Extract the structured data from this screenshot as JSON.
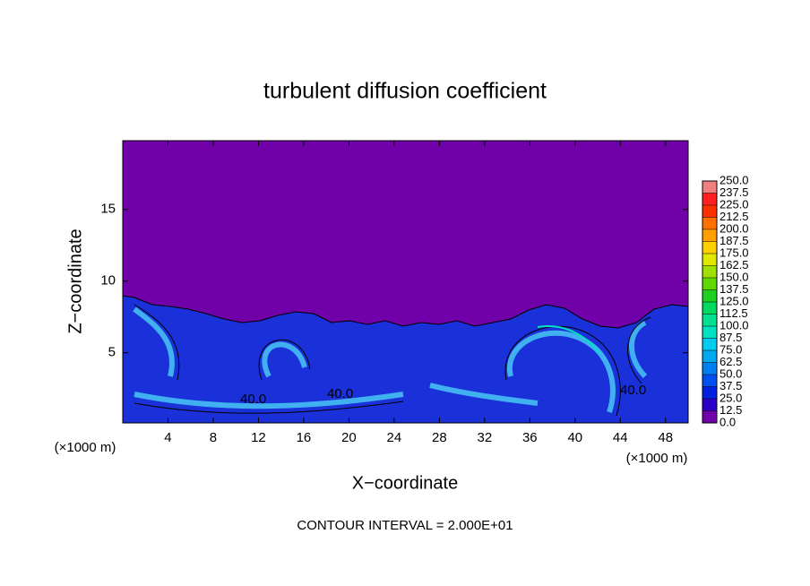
{
  "chart_data": {
    "type": "contour",
    "title": "turbulent diffusion coefficient",
    "xlabel": "X−coordinate",
    "ylabel": "Z−coordinate",
    "x_unit": "(×1000 m)",
    "y_unit": "(×1000 m)",
    "note": "CONTOUR INTERVAL = 2.000E+01",
    "xlim": [
      0,
      50
    ],
    "xticks": [
      4,
      8,
      12,
      16,
      20,
      24,
      28,
      32,
      36,
      40,
      44,
      48
    ],
    "ylim": [
      0.1,
      19.8
    ],
    "yticks": [
      5,
      10,
      15
    ],
    "contour_labels": [
      "40.0",
      "40.0",
      "40.0"
    ],
    "colorbar": {
      "levels": [
        {
          "value": 0,
          "label": "0.0"
        },
        12.5,
        {
          "value": 25,
          "label": "25.0"
        },
        37.5,
        {
          "value": 50,
          "label": "50.0"
        },
        62.5,
        {
          "value": 75,
          "label": "75.0"
        },
        87.5,
        {
          "value": 100,
          "label": "100.0"
        },
        112.5,
        {
          "value": 125,
          "label": "125.0"
        },
        137.5,
        {
          "value": 150,
          "label": "150.0"
        },
        162.5,
        {
          "value": 175,
          "label": "175.0"
        },
        187.5,
        {
          "value": 200,
          "label": "200.0"
        },
        212.5,
        {
          "value": 225,
          "label": "225.0"
        },
        237.5,
        {
          "value": 250,
          "label": "250.0"
        }
      ],
      "colors": [
        "#7000a8",
        "#2a00c8",
        "#0022e0",
        "#0050f0",
        "#0080f0",
        "#00a8f0",
        "#00ccf0",
        "#00e0c0",
        "#00e090",
        "#00d860",
        "#20d020",
        "#60d800",
        "#a0e000",
        "#e0e800",
        "#ffd000",
        "#ffa000",
        "#ff7000",
        "#ff3000",
        "#ff2020",
        "#f08080"
      ]
    }
  }
}
